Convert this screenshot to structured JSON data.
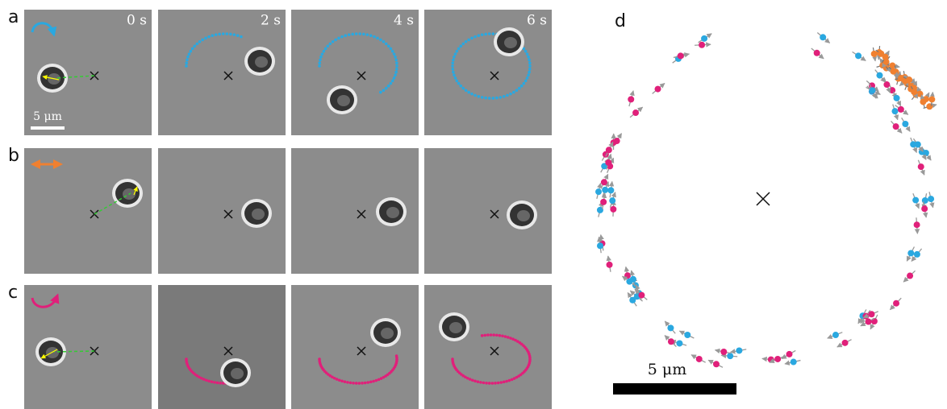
{
  "panels": {
    "row_labels": [
      "a",
      "b",
      "c"
    ],
    "times": [
      "0 s",
      "2 s",
      "4 s",
      "6 s"
    ],
    "scale_bar_label": "5 μm"
  },
  "panel_d": {
    "label": "d",
    "scale_bar_label": "5 μm"
  }
}
